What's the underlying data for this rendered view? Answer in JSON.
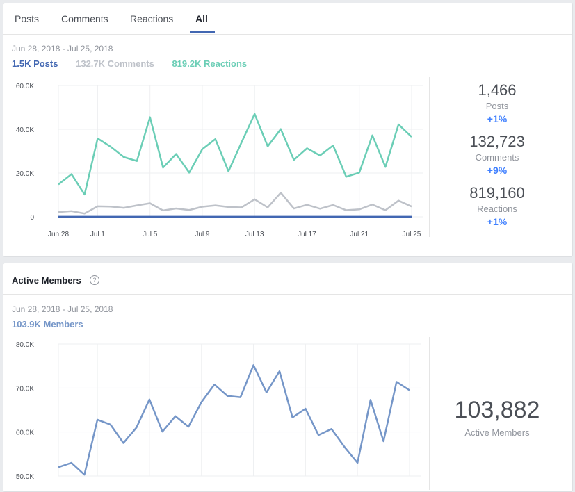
{
  "tabs": [
    {
      "label": "Posts",
      "active": false
    },
    {
      "label": "Comments",
      "active": false
    },
    {
      "label": "Reactions",
      "active": false
    },
    {
      "label": "All",
      "active": true
    }
  ],
  "activity": {
    "date_range": "Jun 28, 2018 - Jul 25, 2018",
    "legend": {
      "posts": "1.5K  Posts",
      "comments": "132.7K  Comments",
      "reactions": "819.2K  Reactions"
    },
    "stats": [
      {
        "value": "1,466",
        "label": "Posts",
        "change": "+1%"
      },
      {
        "value": "132,723",
        "label": "Comments",
        "change": "+9%"
      },
      {
        "value": "819,160",
        "label": "Reactions",
        "change": "+1%"
      }
    ]
  },
  "members": {
    "title": "Active Members",
    "help_icon": "?",
    "date_range": "Jun 28, 2018 - Jul 25, 2018",
    "legend": "103.9K  Members",
    "stat_value": "103,882",
    "stat_label": "Active Members"
  },
  "colors": {
    "posts": "#4267b2",
    "comments": "#bec2c9",
    "reactions": "#6bceb6",
    "members": "#7596c8",
    "change": "#4080ff",
    "tab_underline": "#4267b2"
  },
  "chart_data": [
    {
      "type": "line",
      "x": [
        "Jun 28",
        "Jun 29",
        "Jun 30",
        "Jul 1",
        "Jul 2",
        "Jul 3",
        "Jul 4",
        "Jul 5",
        "Jul 6",
        "Jul 7",
        "Jul 8",
        "Jul 9",
        "Jul 10",
        "Jul 11",
        "Jul 12",
        "Jul 13",
        "Jul 14",
        "Jul 15",
        "Jul 16",
        "Jul 17",
        "Jul 18",
        "Jul 19",
        "Jul 20",
        "Jul 21",
        "Jul 22",
        "Jul 23",
        "Jul 24",
        "Jul 25"
      ],
      "x_tick_labels": [
        "Jun 28",
        "Jul 1",
        "Jul 5",
        "Jul 9",
        "Jul 13",
        "Jul 17",
        "Jul 21",
        "Jul 25"
      ],
      "y_tick_labels": [
        "60.0K",
        "40.0K",
        "20.0K",
        "0"
      ],
      "ylim": [
        0,
        60000
      ],
      "grid": true,
      "series": [
        {
          "name": "Reactions",
          "values": [
            14800,
            19500,
            10200,
            35800,
            32000,
            27300,
            25500,
            45500,
            22500,
            28700,
            20200,
            30900,
            35500,
            20800,
            34000,
            47000,
            32200,
            40100,
            26000,
            31300,
            28000,
            32600,
            18300,
            20200,
            37200,
            22800,
            42200,
            36500
          ]
        },
        {
          "name": "Comments",
          "values": [
            2200,
            2600,
            1500,
            4800,
            4700,
            4100,
            5200,
            6200,
            2900,
            3800,
            3100,
            4600,
            5200,
            4500,
            4300,
            8000,
            4300,
            11000,
            3800,
            5500,
            3700,
            5400,
            3000,
            3400,
            5600,
            3000,
            7400,
            4700
          ]
        },
        {
          "name": "Posts",
          "values": [
            50,
            55,
            50,
            55,
            50,
            55,
            50,
            55,
            50,
            55,
            50,
            55,
            50,
            55,
            50,
            55,
            50,
            55,
            50,
            55,
            50,
            55,
            50,
            55,
            50,
            55,
            50,
            55
          ]
        }
      ]
    },
    {
      "type": "line",
      "x": [
        "Jun 28",
        "Jun 29",
        "Jun 30",
        "Jul 1",
        "Jul 2",
        "Jul 3",
        "Jul 4",
        "Jul 5",
        "Jul 6",
        "Jul 7",
        "Jul 8",
        "Jul 9",
        "Jul 10",
        "Jul 11",
        "Jul 12",
        "Jul 13",
        "Jul 14",
        "Jul 15",
        "Jul 16",
        "Jul 17",
        "Jul 18",
        "Jul 19",
        "Jul 20",
        "Jul 21",
        "Jul 22",
        "Jul 23",
        "Jul 24",
        "Jul 25"
      ],
      "y_tick_labels": [
        "80.0K",
        "70.0K",
        "60.0K",
        "50.0K"
      ],
      "ylim": [
        50000,
        80000
      ],
      "grid": true,
      "series": [
        {
          "name": "Members",
          "values": [
            52000,
            53000,
            50300,
            62800,
            61700,
            57500,
            61000,
            67400,
            60100,
            63600,
            61200,
            66800,
            70800,
            68200,
            67900,
            75200,
            69000,
            73800,
            63300,
            65300,
            59300,
            60700,
            56600,
            53000,
            67300,
            57900,
            71400,
            69500
          ]
        }
      ]
    }
  ]
}
